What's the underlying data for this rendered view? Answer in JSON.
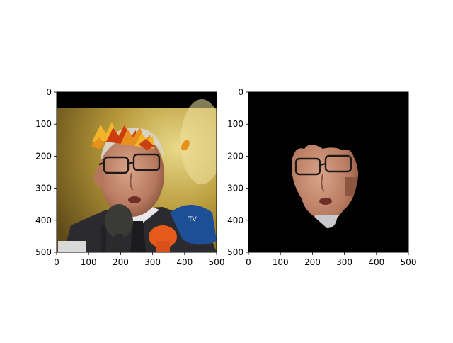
{
  "chart_data": [
    {
      "type": "image",
      "content": "photo of an older man with glasses speaking into several microphones, autumn maple leaves drawn above his head; black band along the top edge",
      "xlim": [
        0,
        500
      ],
      "ylim": [
        500,
        0
      ],
      "xticks": [
        "0",
        "100",
        "200",
        "300",
        "400",
        "500"
      ],
      "yticks": [
        "0",
        "100",
        "200",
        "300",
        "400",
        "500"
      ]
    },
    {
      "type": "image",
      "content": "segmentation mask: only the face region of the same man visible, rest of the frame black",
      "xlim": [
        0,
        500
      ],
      "ylim": [
        500,
        0
      ],
      "xticks": [
        "0",
        "100",
        "200",
        "300",
        "400",
        "500"
      ],
      "yticks": [
        "0",
        "100",
        "200",
        "300",
        "400",
        "500"
      ]
    }
  ],
  "colors": {
    "frame": "#000000",
    "background": "#ffffff",
    "mask_background": "#000000",
    "leaf_orange": "#e8901c",
    "leaf_red": "#cc3d12",
    "leaf_yellow": "#f2b52a"
  }
}
